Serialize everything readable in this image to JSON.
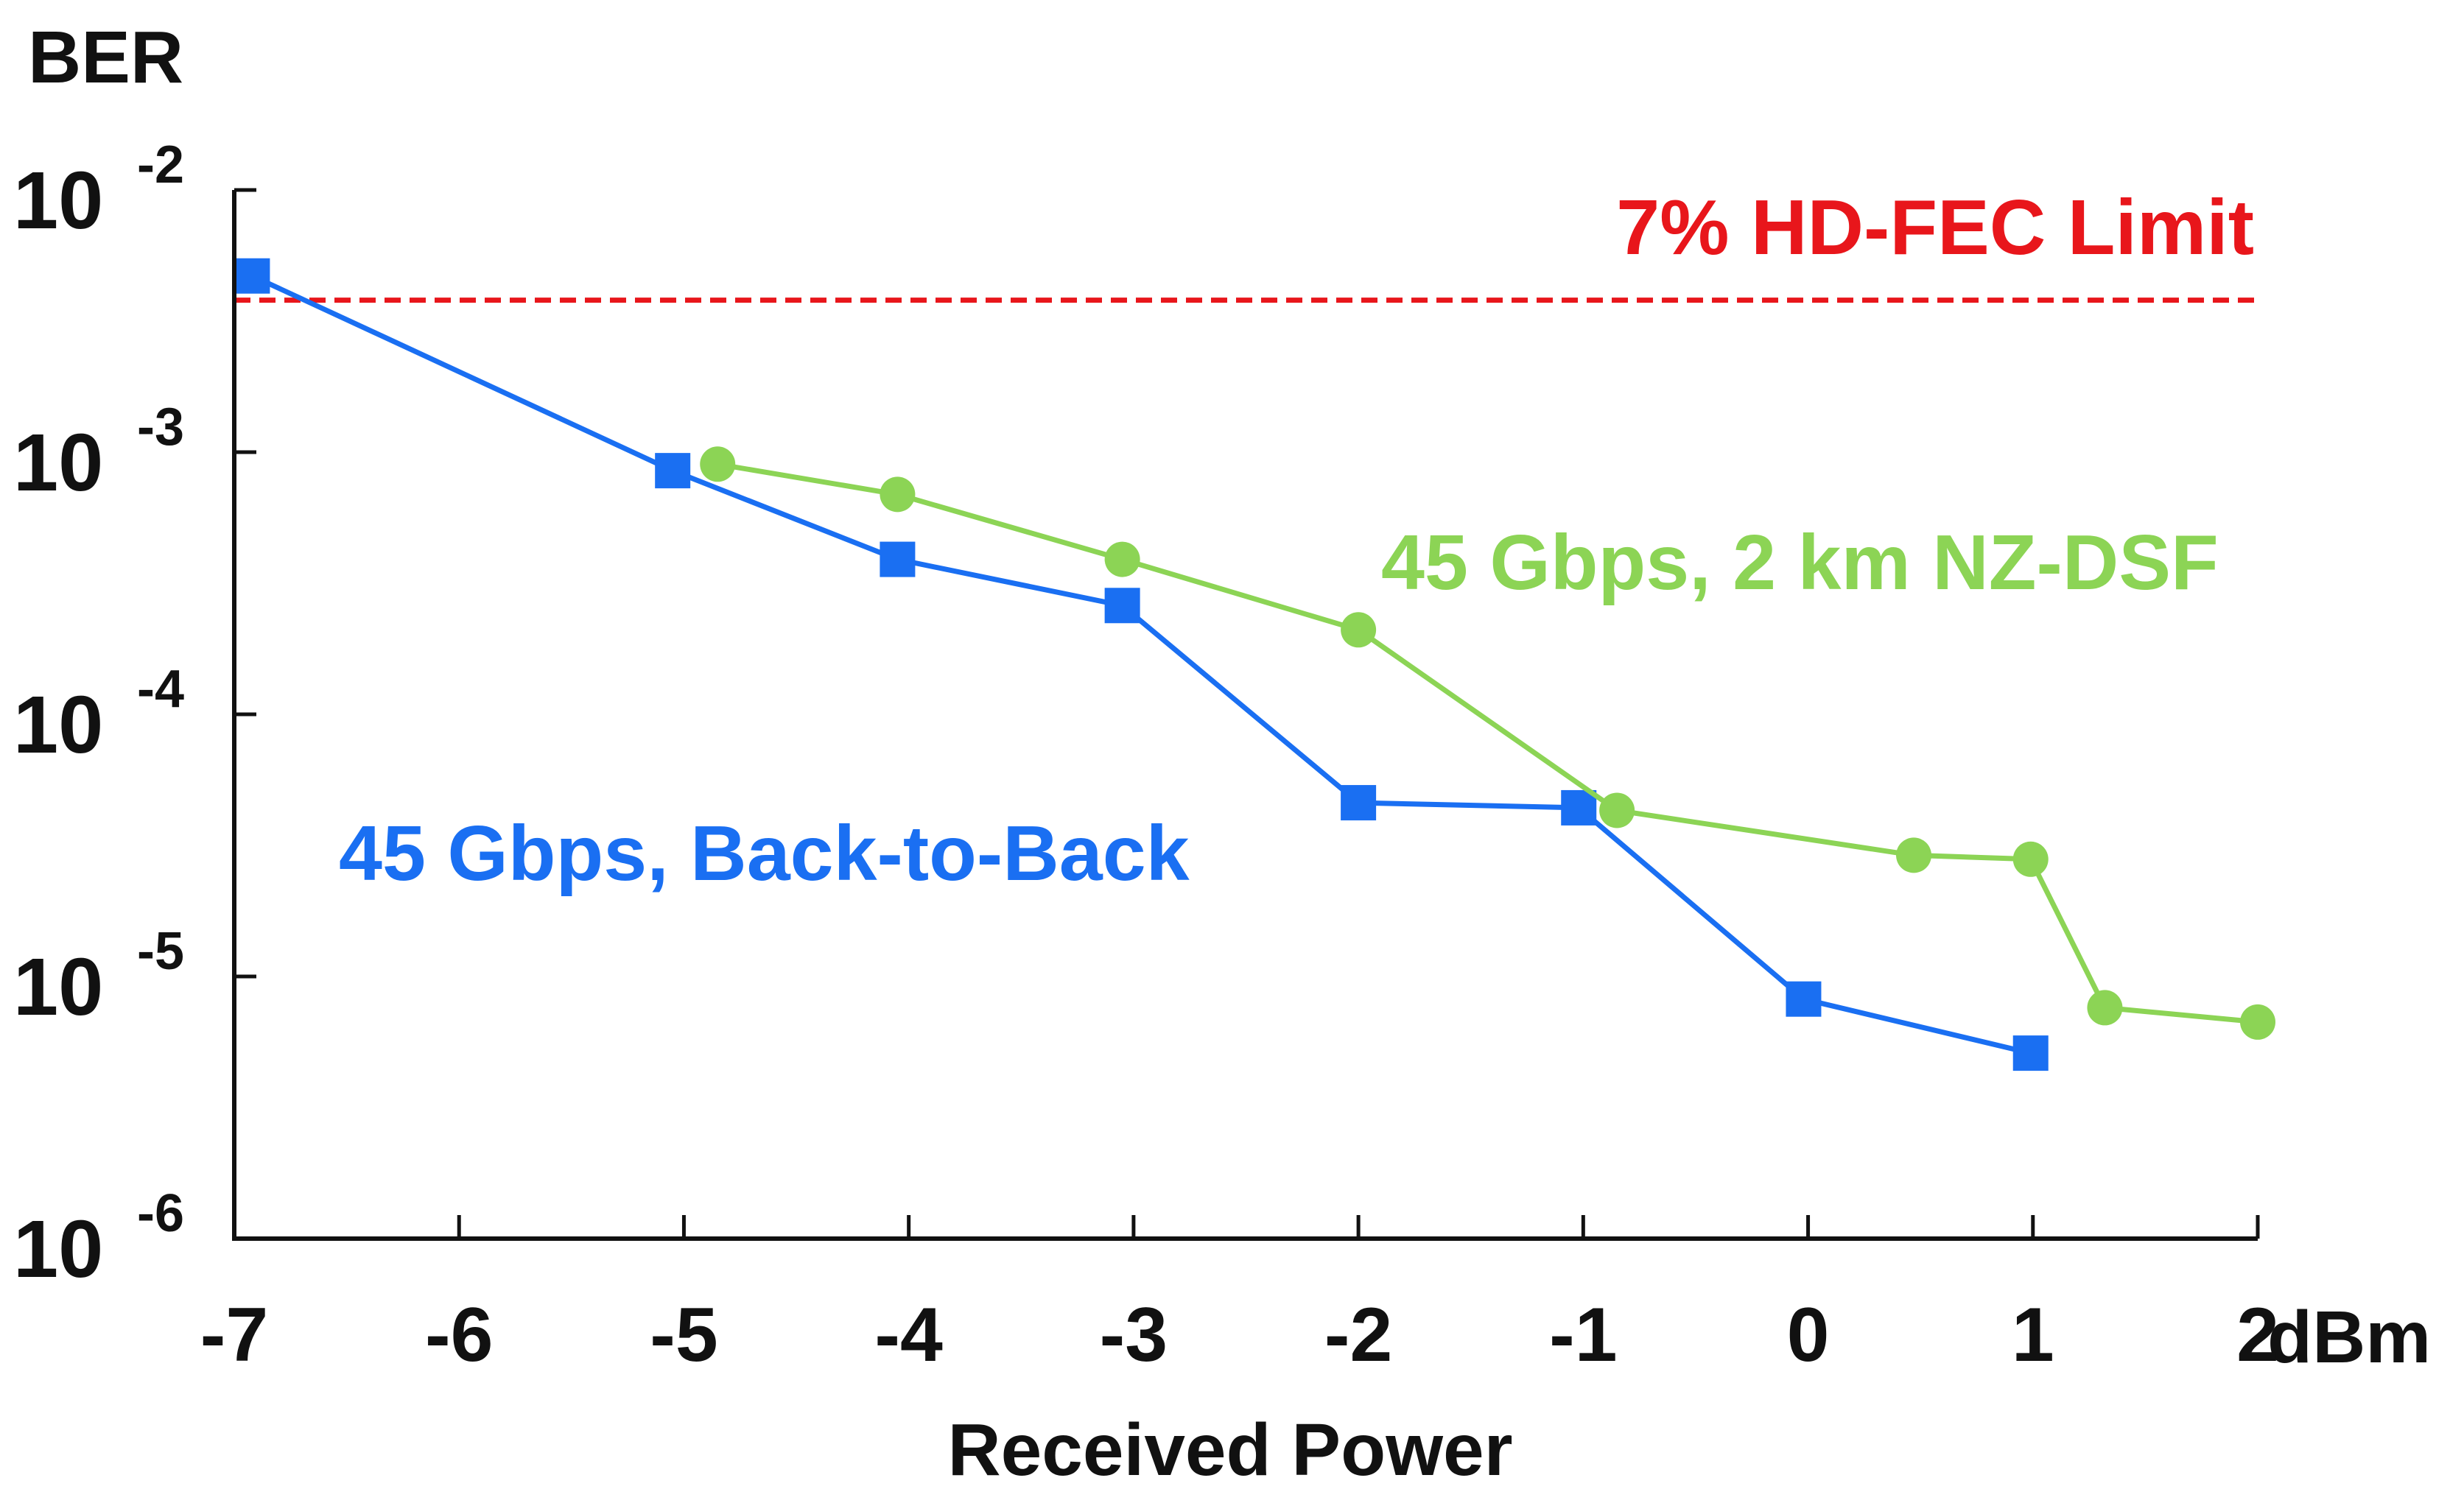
{
  "chart_data": {
    "type": "line",
    "y_scale": "log",
    "ylabel": "BER",
    "xlabel": "Received Power",
    "x_unit": "dBm",
    "xlim": [
      -7,
      2
    ],
    "ylim": [
      1e-06,
      0.01
    ],
    "x_ticks": [
      -7,
      -6,
      -5,
      -4,
      -3,
      -2,
      -1,
      0,
      1,
      2
    ],
    "x_tick_labels": [
      "-7",
      "-6",
      "-5",
      "-4",
      "-3",
      "-2",
      "-1",
      "0",
      "1",
      "2"
    ],
    "y_ticks": [
      {
        "value": 0.01,
        "base": "10",
        "exp": "-2"
      },
      {
        "value": 0.001,
        "base": "10",
        "exp": "-3"
      },
      {
        "value": 0.0001,
        "base": "10",
        "exp": "-4"
      },
      {
        "value": 1e-05,
        "base": "10",
        "exp": "-5"
      },
      {
        "value": 1e-06,
        "base": "10",
        "exp": "-6"
      }
    ],
    "grid": false,
    "threshold": {
      "label": "7% HD-FEC Limit",
      "value": 0.0038,
      "color": "#e8161b"
    },
    "series": [
      {
        "name": "45 Gbps, Back-to-Back",
        "color": "#1a6ff2",
        "marker": "square",
        "x": [
          -6.92,
          -5.05,
          -4.05,
          -3.05,
          -2.0,
          -1.02,
          -0.02,
          0.99
        ],
        "y": [
          0.0047,
          0.00085,
          0.00039,
          0.00026,
          4.6e-05,
          4.4e-05,
          8.2e-06,
          5.1e-06
        ]
      },
      {
        "name": "45 Gbps, 2 km NZ-DSF",
        "color": "#8cd455",
        "marker": "circle",
        "x": [
          -4.85,
          -4.05,
          -3.05,
          -2.0,
          -0.85,
          0.47,
          0.99,
          1.32,
          2.0
        ],
        "y": [
          0.0009,
          0.00069,
          0.00039,
          0.00021,
          4.3e-05,
          2.9e-05,
          2.8e-05,
          7.6e-06,
          6.7e-06
        ]
      }
    ]
  }
}
